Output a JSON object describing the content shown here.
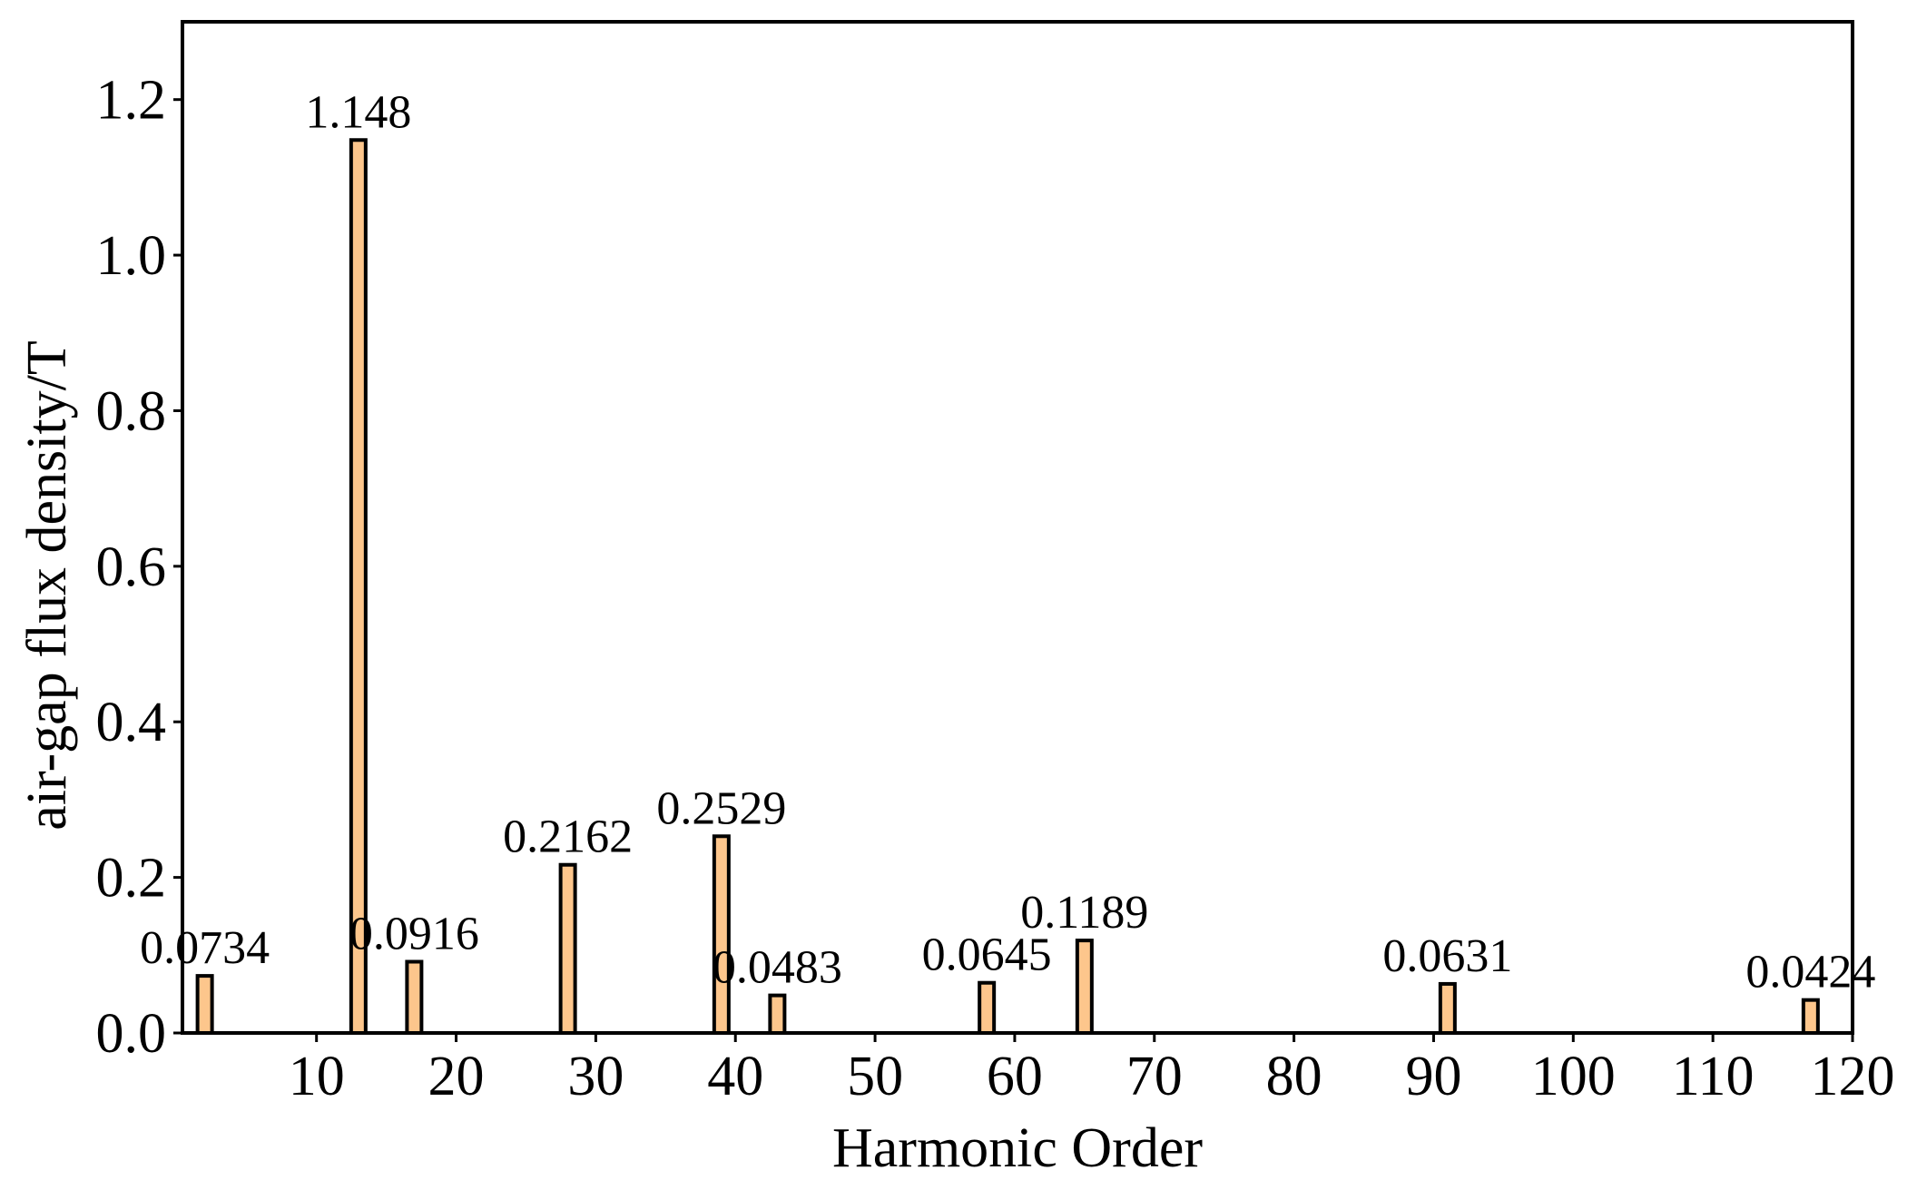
{
  "chart_data": {
    "type": "bar",
    "xlabel": "Harmonic Order",
    "ylabel": "air-gap flux density/T",
    "x": [
      2,
      13,
      17,
      28,
      39,
      43,
      58,
      65,
      91,
      117
    ],
    "values": [
      0.0734,
      1.148,
      0.0916,
      0.2162,
      0.2529,
      0.0483,
      0.0645,
      0.1189,
      0.0631,
      0.0424
    ],
    "color": "#fdc68c",
    "xlim": [
      0.4,
      120
    ],
    "xticks": [
      10,
      20,
      30,
      40,
      50,
      60,
      70,
      80,
      90,
      100,
      110,
      120
    ],
    "ylim": [
      0,
      1.3
    ],
    "yticks": [
      {
        "value": 0,
        "label": "0.0"
      },
      {
        "value": 0.2,
        "label": "0.2"
      },
      {
        "value": 0.4,
        "label": "0.4"
      },
      {
        "value": 0.6,
        "label": "0.6"
      },
      {
        "value": 0.8,
        "label": "0.8"
      },
      {
        "value": 1.0,
        "label": "1.0"
      },
      {
        "value": 1.2,
        "label": "1.2"
      }
    ],
    "grid": false
  }
}
